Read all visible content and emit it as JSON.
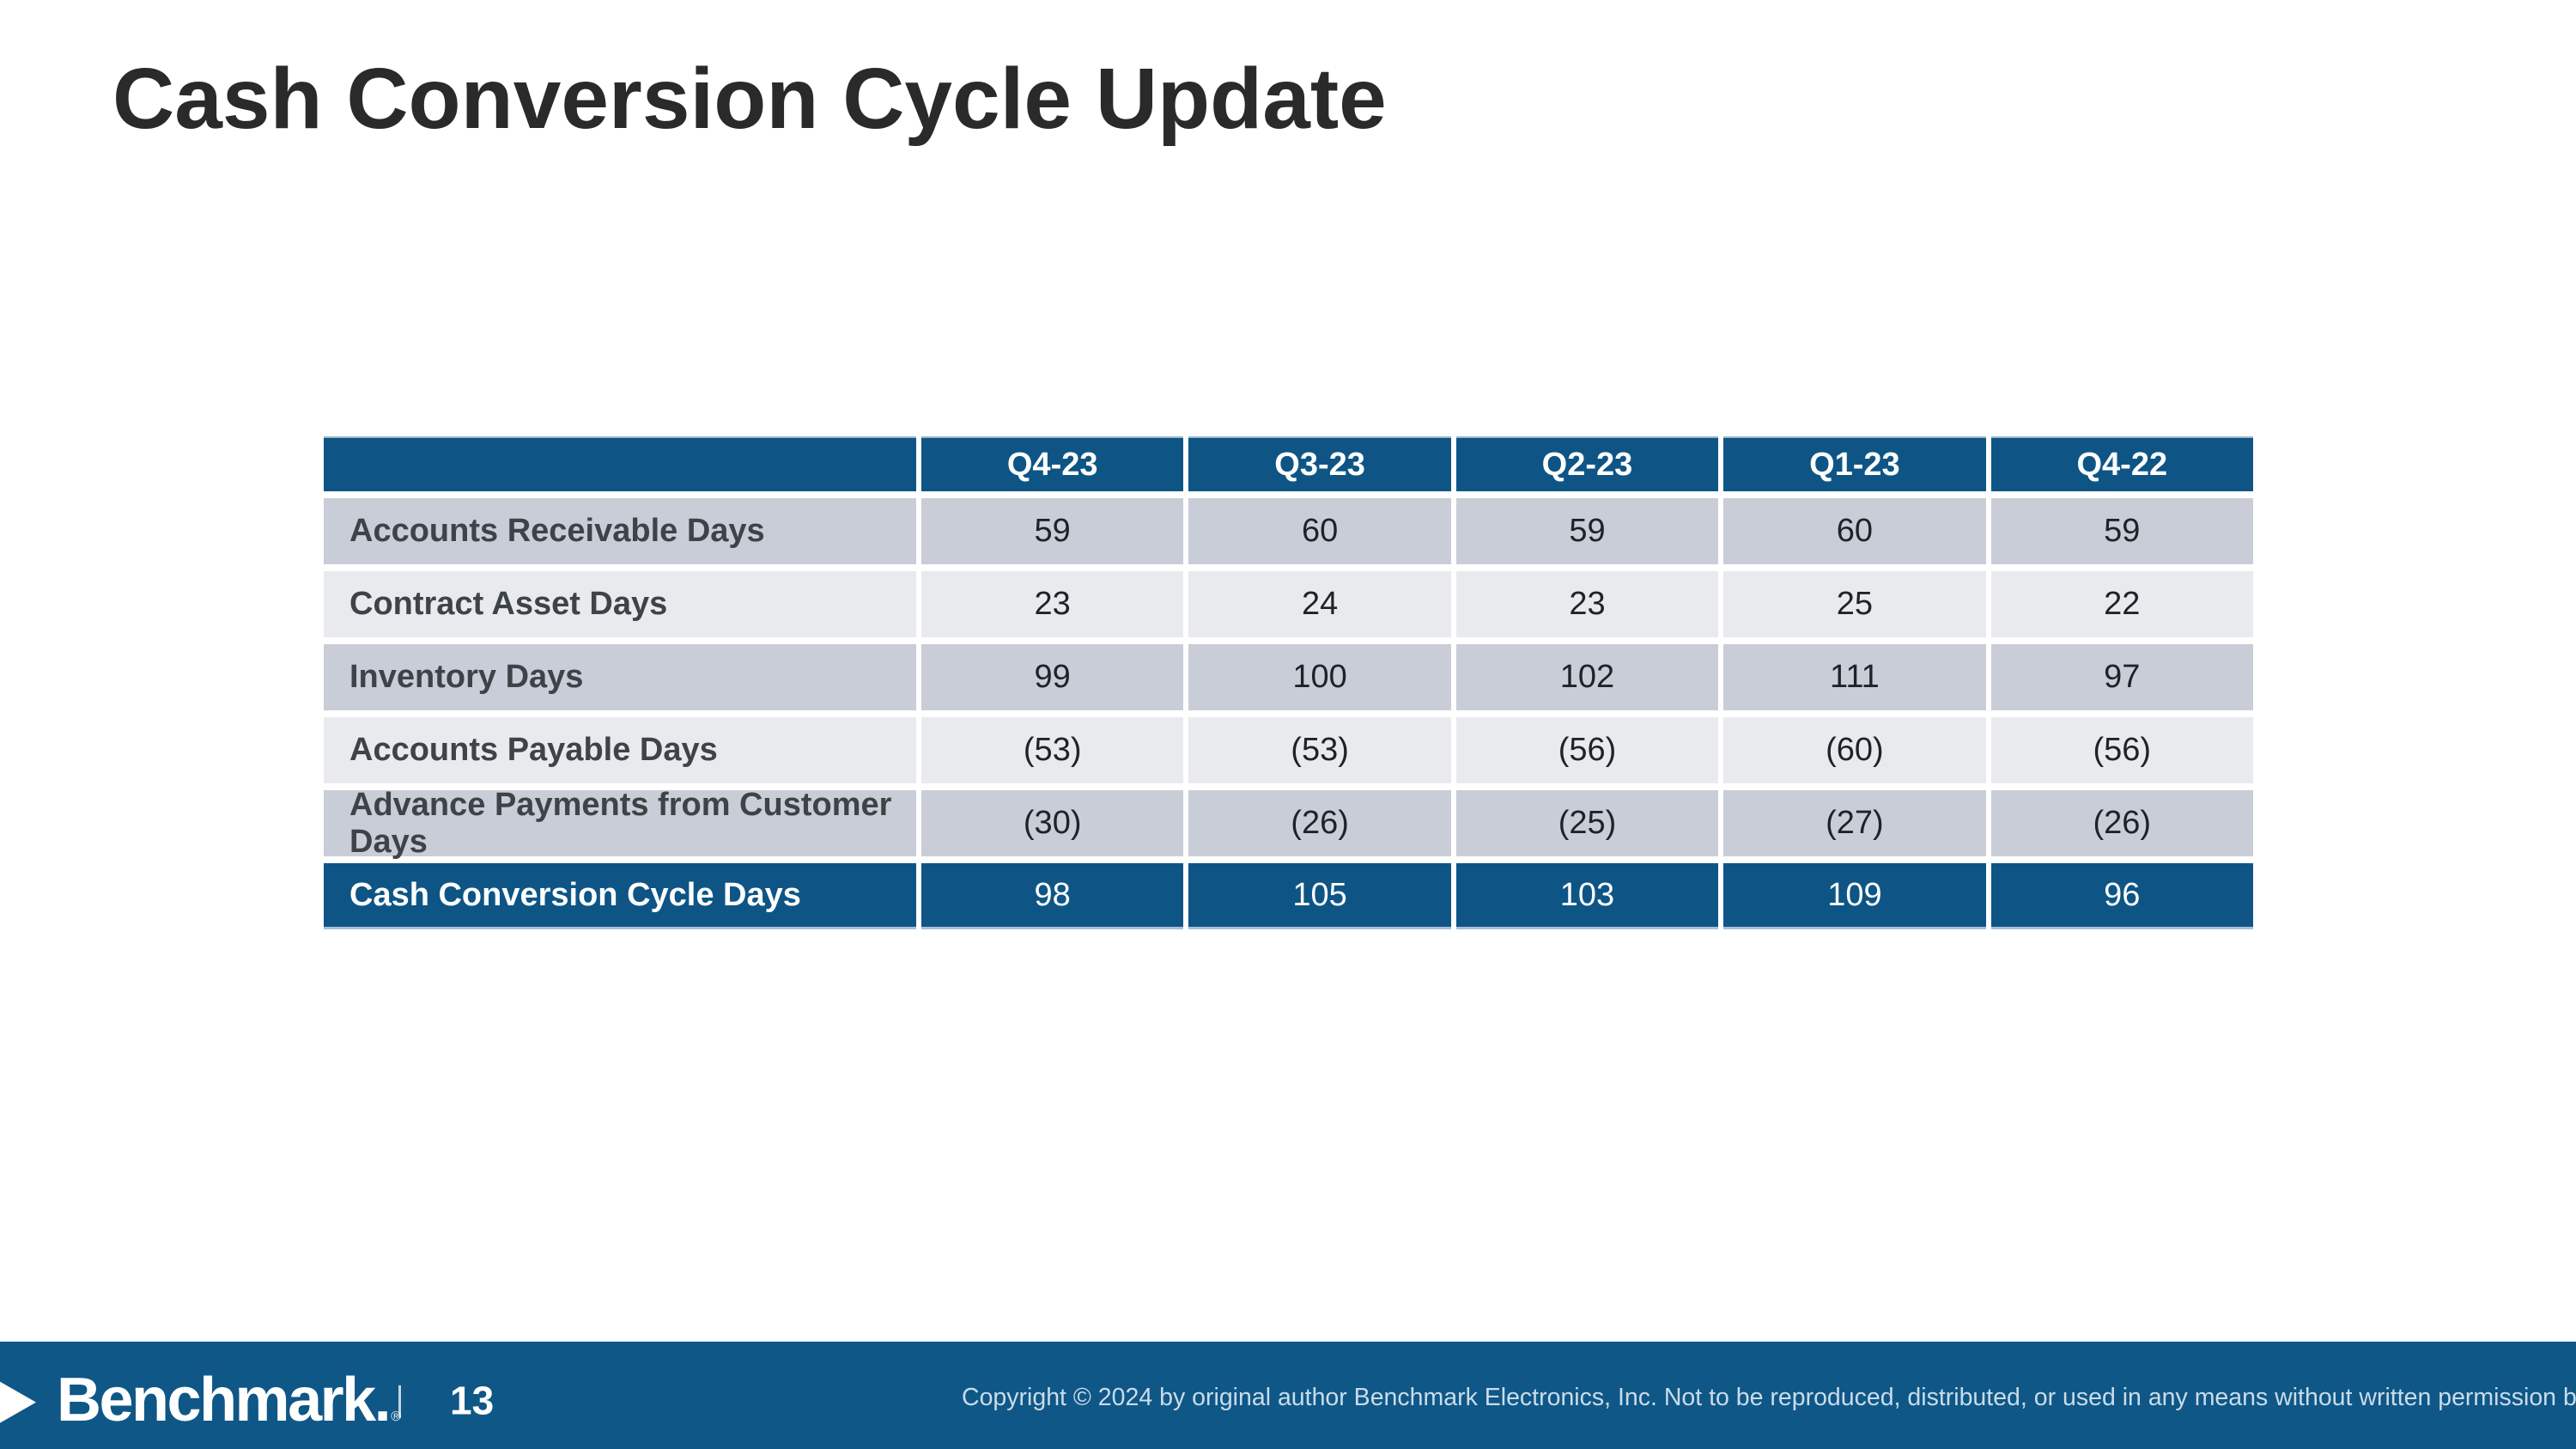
{
  "slide": {
    "title": "Cash Conversion Cycle Update"
  },
  "table": {
    "columns": [
      "Q4-23",
      "Q3-23",
      "Q2-23",
      "Q1-23",
      "Q4-22"
    ],
    "rows": [
      {
        "label": "Accounts Receivable Days",
        "values": [
          "59",
          "60",
          "59",
          "60",
          "59"
        ]
      },
      {
        "label": "Contract Asset Days",
        "values": [
          "23",
          "24",
          "23",
          "25",
          "22"
        ]
      },
      {
        "label": "Inventory Days",
        "values": [
          "99",
          "100",
          "102",
          "111",
          "97"
        ]
      },
      {
        "label": "Accounts Payable Days",
        "values": [
          "(53)",
          "(53)",
          "(56)",
          "(60)",
          "(56)"
        ]
      },
      {
        "label": "Advance Payments from Customer Days",
        "values": [
          "(30)",
          "(26)",
          "(25)",
          "(27)",
          "(26)"
        ]
      }
    ],
    "total_row": {
      "label": "Cash Conversion Cycle Days",
      "values": [
        "98",
        "105",
        "103",
        "109",
        "96"
      ]
    }
  },
  "footer": {
    "logo_text": "Benchmark.",
    "logo_mark": "®",
    "divider": "",
    "page_number": "13",
    "copyright": "Copyright © 2024 by original author Benchmark Electronics, Inc. Not to be reproduced, distributed, or used in any means without written permission by Benchmark."
  },
  "colors": {
    "brand_blue": "#0E5586",
    "footer_blue": "#0F5787",
    "row_dark": "#C9CDD7",
    "row_light": "#E8EAEE",
    "title_text": "#2A2A2A",
    "label_text": "#3E4347",
    "value_text": "#1F2226",
    "copyright_text": "#C9DCEA",
    "white": "#FFFFFF"
  }
}
